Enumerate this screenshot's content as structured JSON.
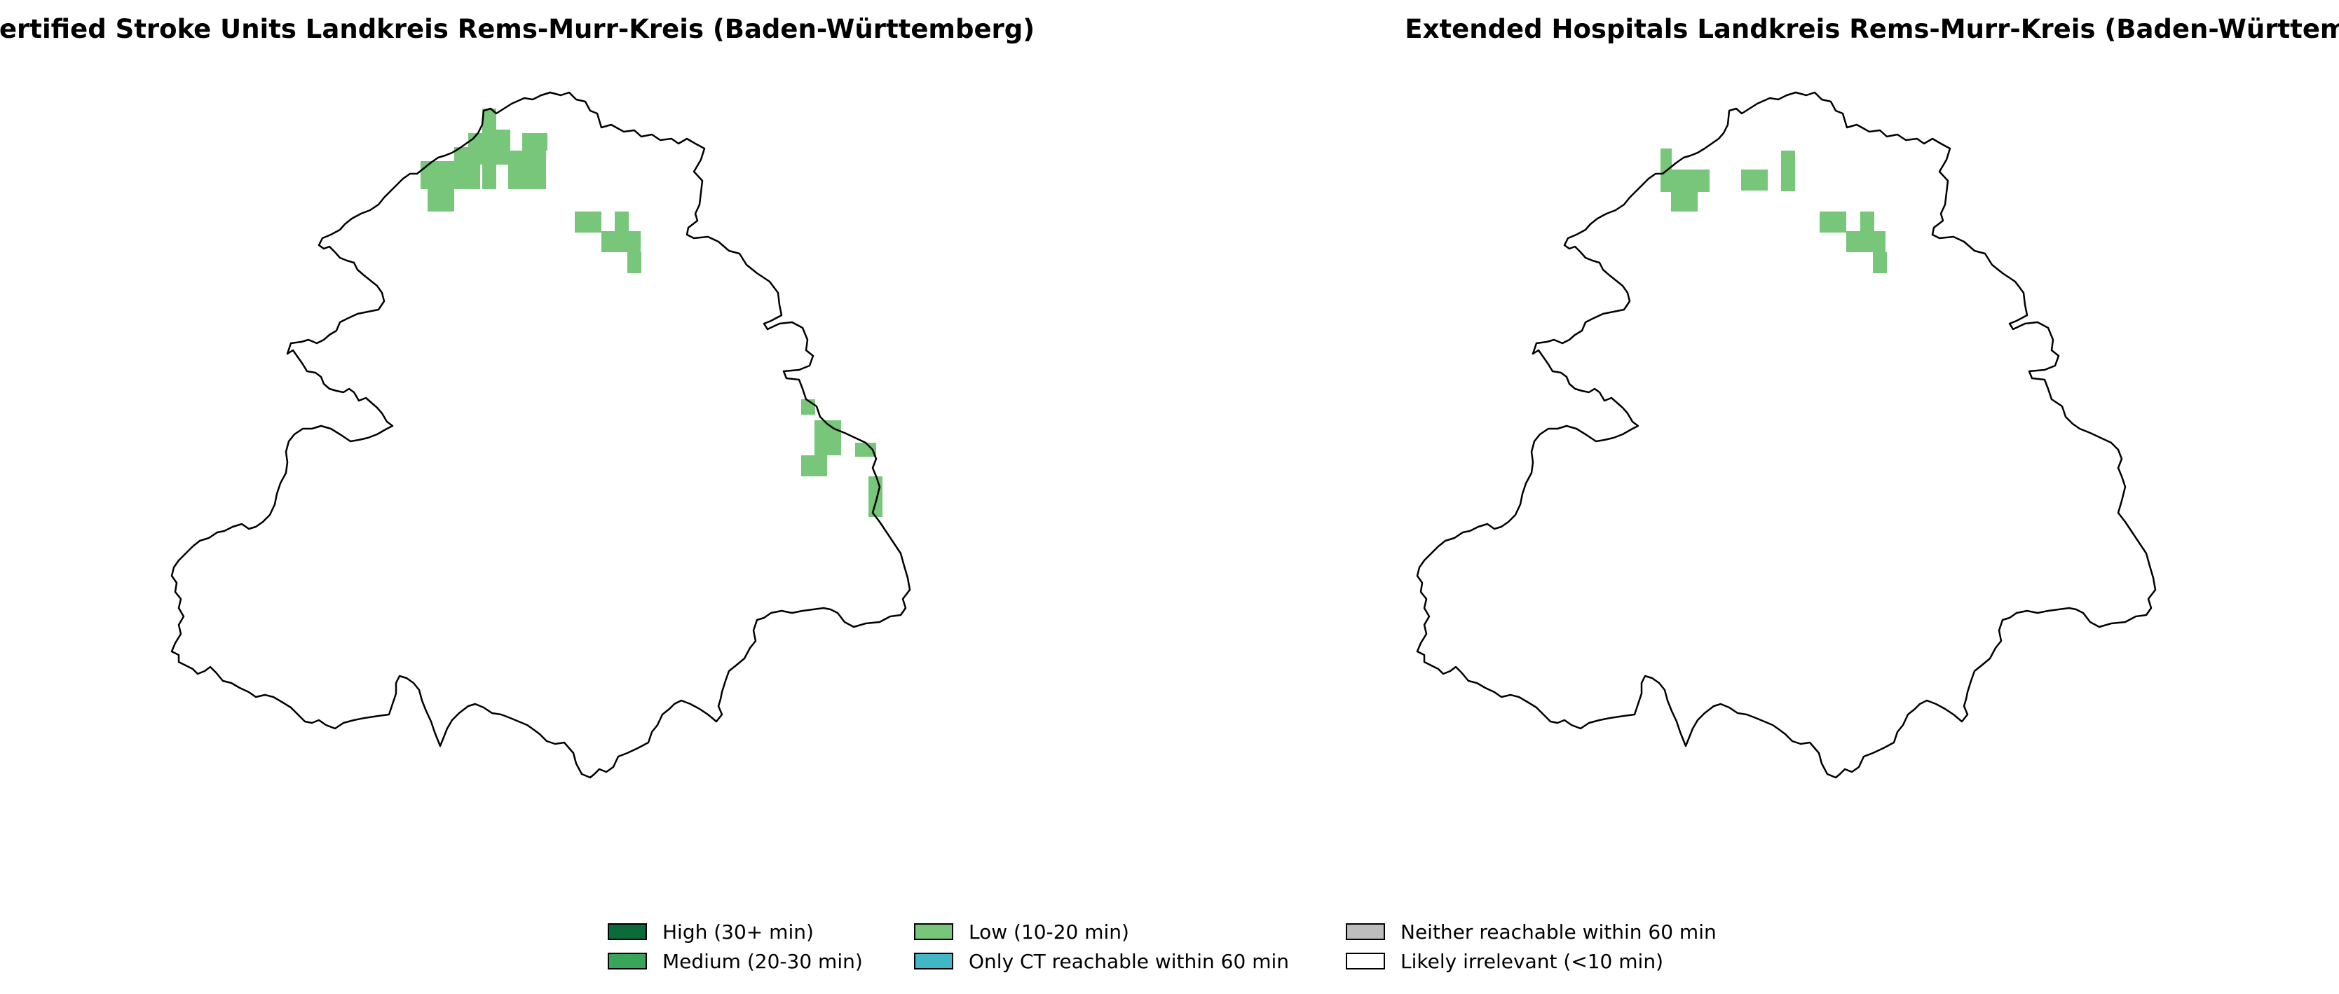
{
  "maps": [
    {
      "title": "Certified Stroke Units Landkreis Rems-Murr-Kreis (Baden-Württemberg)",
      "category": "Low (10-20 min)"
    },
    {
      "title": "Extended Hospitals Landkreis Rems-Murr-Kreis (Baden-Württemberg)",
      "category": "Low (10-20 min)"
    }
  ],
  "legend": {
    "items": [
      {
        "label": "High (30+ min)",
        "color": "#0b6b3a"
      },
      {
        "label": "Medium (20-30 min)",
        "color": "#38a559"
      },
      {
        "label": "Low (10-20 min)",
        "color": "#78c679"
      },
      {
        "label": "Only CT reachable within 60 min",
        "color": "#41b6c4"
      },
      {
        "label": "Neither reachable within 60 min",
        "color": "#bdbdbd"
      },
      {
        "label": "Likely irrelevant (<10 min)",
        "color": "#ffffff"
      }
    ]
  },
  "colors": {
    "background": "#ffffff",
    "boundary": "#000000",
    "low": "#78c679"
  }
}
